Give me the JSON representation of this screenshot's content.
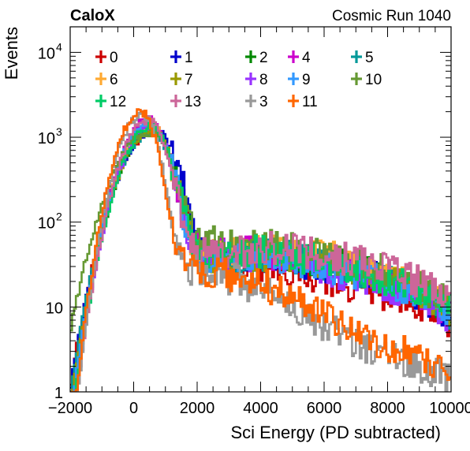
{
  "header": {
    "brand": "CaloX",
    "run": "Cosmic Run 1040"
  },
  "chart_data": {
    "type": "line",
    "title": "",
    "xlabel": "Sci Energy (PD subtracted)",
    "ylabel": "Events",
    "xlim": [
      -2000,
      10000
    ],
    "ylim": [
      1,
      20000
    ],
    "yscale": "log",
    "grid": false,
    "legend_position": "top",
    "x_ticks": [
      {
        "value": -2000,
        "label": "−2000"
      },
      {
        "value": 0,
        "label": "0"
      },
      {
        "value": 2000,
        "label": "2000"
      },
      {
        "value": 4000,
        "label": "4000"
      },
      {
        "value": 6000,
        "label": "6000"
      },
      {
        "value": 8000,
        "label": "8000"
      },
      {
        "value": 10000,
        "label": "10000"
      }
    ],
    "y_ticks": [
      {
        "value": 1,
        "label": "1"
      },
      {
        "value": 10,
        "label": "10"
      },
      {
        "value": 100,
        "label": "10",
        "sup": "2"
      },
      {
        "value": 1000,
        "label": "10",
        "sup": "3"
      },
      {
        "value": 10000,
        "label": "10",
        "sup": "4"
      }
    ],
    "series": [
      {
        "name": "0",
        "color": "#cc0000",
        "peak_x": 600,
        "peak_y": 1150,
        "left_w": 700,
        "right_w": 480,
        "tail_x": [
          1700,
          3000,
          4500,
          6000,
          7500,
          9000,
          10000
        ],
        "tail_y": [
          45,
          33,
          30,
          21,
          16,
          10,
          6
        ]
      },
      {
        "name": "1",
        "color": "#0000cc",
        "peak_x": 620,
        "peak_y": 1180,
        "left_w": 700,
        "right_w": 520,
        "tail_x": [
          1700,
          3000,
          4500,
          6000,
          7500,
          9000,
          10000
        ],
        "tail_y": [
          48,
          38,
          40,
          30,
          23,
          14,
          8
        ]
      },
      {
        "name": "2",
        "color": "#008800",
        "peak_x": 560,
        "peak_y": 1250,
        "left_w": 650,
        "right_w": 450,
        "tail_x": [
          1700,
          3000,
          4500,
          6000,
          7500,
          9000,
          10000
        ],
        "tail_y": [
          42,
          40,
          45,
          34,
          25,
          15,
          9
        ]
      },
      {
        "name": "4",
        "color": "#cc00cc",
        "peak_x": 450,
        "peak_y": 1600,
        "left_w": 600,
        "right_w": 430,
        "tail_x": [
          1700,
          3000,
          4500,
          6000,
          7500,
          9000,
          10000
        ],
        "tail_y": [
          55,
          45,
          42,
          32,
          24,
          14,
          8
        ]
      },
      {
        "name": "5",
        "color": "#009999",
        "peak_x": 560,
        "peak_y": 1150,
        "left_w": 680,
        "right_w": 460,
        "tail_x": [
          1700,
          3000,
          4500,
          6000,
          7500,
          9000,
          10000
        ],
        "tail_y": [
          40,
          38,
          42,
          32,
          24,
          14,
          8
        ]
      },
      {
        "name": "6",
        "color": "#ffaa33",
        "peak_x": 500,
        "peak_y": 1400,
        "left_w": 620,
        "right_w": 440,
        "tail_x": [
          1700,
          3000,
          4500,
          6000,
          7500,
          9000,
          10000
        ],
        "tail_y": [
          40,
          42,
          48,
          40,
          30,
          18,
          10
        ]
      },
      {
        "name": "7",
        "color": "#999900",
        "peak_x": 560,
        "peak_y": 1200,
        "left_w": 660,
        "right_w": 470,
        "tail_x": [
          1700,
          3000,
          4500,
          6000,
          7500,
          9000,
          10000
        ],
        "tail_y": [
          38,
          36,
          40,
          32,
          25,
          15,
          9
        ]
      },
      {
        "name": "8",
        "color": "#9933ff",
        "peak_x": 520,
        "peak_y": 1350,
        "left_w": 620,
        "right_w": 450,
        "tail_x": [
          1700,
          3000,
          4500,
          6000,
          7500,
          9000,
          10000
        ],
        "tail_y": [
          42,
          40,
          38,
          28,
          20,
          12,
          7
        ]
      },
      {
        "name": "9",
        "color": "#3399ff",
        "peak_x": 480,
        "peak_y": 1450,
        "left_w": 620,
        "right_w": 450,
        "tail_x": [
          1700,
          3000,
          4500,
          6000,
          7500,
          9000,
          10000
        ],
        "tail_y": [
          40,
          38,
          40,
          30,
          22,
          13,
          7
        ]
      },
      {
        "name": "10",
        "color": "#669933",
        "peak_x": 500,
        "peak_y": 1150,
        "left_w": 760,
        "right_w": 480,
        "tail_x": [
          1700,
          3000,
          4500,
          6000,
          7500,
          9000,
          10000
        ],
        "tail_y": [
          60,
          55,
          52,
          40,
          30,
          18,
          11
        ]
      },
      {
        "name": "12",
        "color": "#00cc66",
        "peak_x": 520,
        "peak_y": 1300,
        "left_w": 620,
        "right_w": 460,
        "tail_x": [
          1700,
          3000,
          4500,
          6000,
          7500,
          9000,
          10000
        ],
        "tail_y": [
          45,
          45,
          45,
          34,
          25,
          15,
          9
        ]
      },
      {
        "name": "13",
        "color": "#cc6699",
        "peak_x": 440,
        "peak_y": 1550,
        "left_w": 580,
        "right_w": 430,
        "tail_x": [
          1700,
          3000,
          4500,
          6000,
          7500,
          9000,
          10000
        ],
        "tail_y": [
          42,
          42,
          50,
          42,
          32,
          20,
          12
        ]
      },
      {
        "name": "3",
        "color": "#999999",
        "peak_x": 260,
        "peak_y": 1850,
        "left_w": 520,
        "right_w": 380,
        "tail_x": [
          1700,
          3000,
          4500,
          6000,
          7500,
          9000,
          10000
        ],
        "tail_y": [
          28,
          22,
          14,
          6,
          3,
          2,
          1.5
        ]
      },
      {
        "name": "11",
        "color": "#ff6600",
        "peak_x": 220,
        "peak_y": 1950,
        "left_w": 520,
        "right_w": 370,
        "tail_x": [
          1700,
          3000,
          4500,
          6000,
          7500,
          9000,
          10000
        ],
        "tail_y": [
          30,
          24,
          16,
          8,
          4,
          2.5,
          2
        ]
      }
    ]
  }
}
